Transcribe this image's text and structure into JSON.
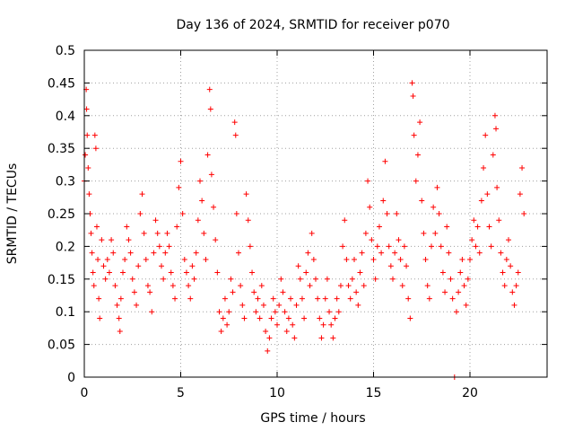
{
  "chart_data": {
    "type": "scatter",
    "title": "Day 136 of 2024, SRMTID for receiver p070",
    "xlabel": "GPS time / hours",
    "ylabel": "SRMTID / TECUs",
    "xlim": [
      0,
      24
    ],
    "ylim": [
      0,
      0.5
    ],
    "xticks": [
      0,
      5,
      10,
      15,
      20
    ],
    "xtick_labels": [
      "0",
      "5",
      "10",
      "15",
      "20"
    ],
    "yticks": [
      0,
      0.05,
      0.1,
      0.15,
      0.2,
      0.25,
      0.3,
      0.35,
      0.4,
      0.45,
      0.5
    ],
    "ytick_labels": [
      "0",
      "0.05",
      "0.1",
      "0.15",
      "0.2",
      "0.25",
      "0.3",
      "0.35",
      "0.4",
      "0.45",
      "0.5"
    ],
    "grid": true,
    "marker": "+",
    "color": "#ff0000",
    "series": [
      {
        "name": "SRMTID",
        "points": [
          [
            0.0,
            0.3
          ],
          [
            0.05,
            0.34
          ],
          [
            0.1,
            0.44
          ],
          [
            0.12,
            0.41
          ],
          [
            0.15,
            0.37
          ],
          [
            0.2,
            0.32
          ],
          [
            0.25,
            0.28
          ],
          [
            0.3,
            0.25
          ],
          [
            0.35,
            0.22
          ],
          [
            0.4,
            0.19
          ],
          [
            0.45,
            0.16
          ],
          [
            0.5,
            0.14
          ],
          [
            0.55,
            0.37
          ],
          [
            0.6,
            0.35
          ],
          [
            0.65,
            0.23
          ],
          [
            0.7,
            0.18
          ],
          [
            0.75,
            0.12
          ],
          [
            0.8,
            0.09
          ],
          [
            0.9,
            0.21
          ],
          [
            1.0,
            0.17
          ],
          [
            1.1,
            0.15
          ],
          [
            1.2,
            0.18
          ],
          [
            1.3,
            0.16
          ],
          [
            1.4,
            0.21
          ],
          [
            1.5,
            0.19
          ],
          [
            1.6,
            0.14
          ],
          [
            1.7,
            0.11
          ],
          [
            1.8,
            0.09
          ],
          [
            1.85,
            0.07
          ],
          [
            1.9,
            0.12
          ],
          [
            2.0,
            0.16
          ],
          [
            2.1,
            0.18
          ],
          [
            2.2,
            0.23
          ],
          [
            2.3,
            0.21
          ],
          [
            2.4,
            0.19
          ],
          [
            2.5,
            0.15
          ],
          [
            2.6,
            0.13
          ],
          [
            2.7,
            0.11
          ],
          [
            2.8,
            0.17
          ],
          [
            2.9,
            0.25
          ],
          [
            3.0,
            0.28
          ],
          [
            3.1,
            0.22
          ],
          [
            3.2,
            0.18
          ],
          [
            3.3,
            0.14
          ],
          [
            3.4,
            0.13
          ],
          [
            3.5,
            0.1
          ],
          [
            3.6,
            0.19
          ],
          [
            3.7,
            0.24
          ],
          [
            3.8,
            0.22
          ],
          [
            3.9,
            0.2
          ],
          [
            4.0,
            0.17
          ],
          [
            4.1,
            0.15
          ],
          [
            4.2,
            0.19
          ],
          [
            4.3,
            0.22
          ],
          [
            4.4,
            0.2
          ],
          [
            4.5,
            0.16
          ],
          [
            4.6,
            0.14
          ],
          [
            4.7,
            0.12
          ],
          [
            4.8,
            0.23
          ],
          [
            4.9,
            0.29
          ],
          [
            5.0,
            0.33
          ],
          [
            5.1,
            0.25
          ],
          [
            5.2,
            0.18
          ],
          [
            5.3,
            0.16
          ],
          [
            5.4,
            0.14
          ],
          [
            5.5,
            0.12
          ],
          [
            5.6,
            0.17
          ],
          [
            5.7,
            0.15
          ],
          [
            5.8,
            0.19
          ],
          [
            5.9,
            0.24
          ],
          [
            6.0,
            0.3
          ],
          [
            6.1,
            0.27
          ],
          [
            6.2,
            0.22
          ],
          [
            6.3,
            0.18
          ],
          [
            6.4,
            0.34
          ],
          [
            6.5,
            0.44
          ],
          [
            6.55,
            0.41
          ],
          [
            6.6,
            0.31
          ],
          [
            6.7,
            0.26
          ],
          [
            6.8,
            0.21
          ],
          [
            6.9,
            0.16
          ],
          [
            7.0,
            0.1
          ],
          [
            7.1,
            0.07
          ],
          [
            7.2,
            0.09
          ],
          [
            7.3,
            0.12
          ],
          [
            7.4,
            0.08
          ],
          [
            7.5,
            0.1
          ],
          [
            7.6,
            0.15
          ],
          [
            7.7,
            0.13
          ],
          [
            7.8,
            0.39
          ],
          [
            7.85,
            0.37
          ],
          [
            7.9,
            0.25
          ],
          [
            8.0,
            0.19
          ],
          [
            8.1,
            0.14
          ],
          [
            8.2,
            0.11
          ],
          [
            8.3,
            0.09
          ],
          [
            8.4,
            0.28
          ],
          [
            8.5,
            0.24
          ],
          [
            8.6,
            0.2
          ],
          [
            8.7,
            0.16
          ],
          [
            8.8,
            0.13
          ],
          [
            8.9,
            0.1
          ],
          [
            9.0,
            0.12
          ],
          [
            9.1,
            0.09
          ],
          [
            9.2,
            0.14
          ],
          [
            9.3,
            0.11
          ],
          [
            9.4,
            0.07
          ],
          [
            9.5,
            0.04
          ],
          [
            9.6,
            0.06
          ],
          [
            9.7,
            0.09
          ],
          [
            9.8,
            0.12
          ],
          [
            9.9,
            0.1
          ],
          [
            10.0,
            0.08
          ],
          [
            10.1,
            0.11
          ],
          [
            10.2,
            0.15
          ],
          [
            10.3,
            0.13
          ],
          [
            10.4,
            0.1
          ],
          [
            10.5,
            0.07
          ],
          [
            10.6,
            0.09
          ],
          [
            10.7,
            0.12
          ],
          [
            10.8,
            0.08
          ],
          [
            10.9,
            0.06
          ],
          [
            11.0,
            0.11
          ],
          [
            11.1,
            0.17
          ],
          [
            11.2,
            0.15
          ],
          [
            11.3,
            0.12
          ],
          [
            11.4,
            0.09
          ],
          [
            11.5,
            0.16
          ],
          [
            11.6,
            0.19
          ],
          [
            11.7,
            0.14
          ],
          [
            11.8,
            0.22
          ],
          [
            11.9,
            0.18
          ],
          [
            12.0,
            0.15
          ],
          [
            12.1,
            0.12
          ],
          [
            12.2,
            0.09
          ],
          [
            12.3,
            0.06
          ],
          [
            12.4,
            0.08
          ],
          [
            12.5,
            0.12
          ],
          [
            12.6,
            0.15
          ],
          [
            12.7,
            0.1
          ],
          [
            12.8,
            0.08
          ],
          [
            12.9,
            0.06
          ],
          [
            13.0,
            0.09
          ],
          [
            13.1,
            0.12
          ],
          [
            13.2,
            0.1
          ],
          [
            13.3,
            0.14
          ],
          [
            13.4,
            0.2
          ],
          [
            13.5,
            0.24
          ],
          [
            13.6,
            0.18
          ],
          [
            13.7,
            0.14
          ],
          [
            13.8,
            0.12
          ],
          [
            13.9,
            0.15
          ],
          [
            14.0,
            0.18
          ],
          [
            14.1,
            0.13
          ],
          [
            14.2,
            0.11
          ],
          [
            14.3,
            0.16
          ],
          [
            14.4,
            0.19
          ],
          [
            14.5,
            0.14
          ],
          [
            14.6,
            0.22
          ],
          [
            14.7,
            0.3
          ],
          [
            14.8,
            0.26
          ],
          [
            14.9,
            0.21
          ],
          [
            15.0,
            0.18
          ],
          [
            15.1,
            0.15
          ],
          [
            15.2,
            0.2
          ],
          [
            15.3,
            0.23
          ],
          [
            15.4,
            0.19
          ],
          [
            15.5,
            0.27
          ],
          [
            15.6,
            0.33
          ],
          [
            15.7,
            0.25
          ],
          [
            15.8,
            0.2
          ],
          [
            15.9,
            0.17
          ],
          [
            16.0,
            0.15
          ],
          [
            16.1,
            0.19
          ],
          [
            16.2,
            0.25
          ],
          [
            16.3,
            0.21
          ],
          [
            16.4,
            0.18
          ],
          [
            16.5,
            0.14
          ],
          [
            16.6,
            0.2
          ],
          [
            16.7,
            0.17
          ],
          [
            16.8,
            0.12
          ],
          [
            16.9,
            0.09
          ],
          [
            17.0,
            0.45
          ],
          [
            17.05,
            0.43
          ],
          [
            17.1,
            0.37
          ],
          [
            17.2,
            0.3
          ],
          [
            17.3,
            0.34
          ],
          [
            17.4,
            0.39
          ],
          [
            17.5,
            0.27
          ],
          [
            17.6,
            0.22
          ],
          [
            17.7,
            0.18
          ],
          [
            17.8,
            0.14
          ],
          [
            17.9,
            0.12
          ],
          [
            18.0,
            0.2
          ],
          [
            18.1,
            0.26
          ],
          [
            18.2,
            0.22
          ],
          [
            18.3,
            0.29
          ],
          [
            18.4,
            0.25
          ],
          [
            18.5,
            0.2
          ],
          [
            18.6,
            0.16
          ],
          [
            18.7,
            0.13
          ],
          [
            18.8,
            0.23
          ],
          [
            18.9,
            0.19
          ],
          [
            19.0,
            0.15
          ],
          [
            19.1,
            0.12
          ],
          [
            19.2,
            0.0
          ],
          [
            19.3,
            0.1
          ],
          [
            19.4,
            0.13
          ],
          [
            19.5,
            0.16
          ],
          [
            19.6,
            0.18
          ],
          [
            19.7,
            0.14
          ],
          [
            19.8,
            0.11
          ],
          [
            19.9,
            0.15
          ],
          [
            20.0,
            0.18
          ],
          [
            20.1,
            0.21
          ],
          [
            20.2,
            0.24
          ],
          [
            20.3,
            0.2
          ],
          [
            20.4,
            0.23
          ],
          [
            20.5,
            0.19
          ],
          [
            20.6,
            0.27
          ],
          [
            20.7,
            0.32
          ],
          [
            20.8,
            0.37
          ],
          [
            20.9,
            0.28
          ],
          [
            21.0,
            0.23
          ],
          [
            21.1,
            0.2
          ],
          [
            21.2,
            0.34
          ],
          [
            21.3,
            0.4
          ],
          [
            21.35,
            0.38
          ],
          [
            21.4,
            0.29
          ],
          [
            21.5,
            0.24
          ],
          [
            21.6,
            0.19
          ],
          [
            21.7,
            0.16
          ],
          [
            21.8,
            0.14
          ],
          [
            21.9,
            0.18
          ],
          [
            22.0,
            0.21
          ],
          [
            22.1,
            0.17
          ],
          [
            22.2,
            0.13
          ],
          [
            22.3,
            0.11
          ],
          [
            22.4,
            0.14
          ],
          [
            22.5,
            0.16
          ],
          [
            22.6,
            0.28
          ],
          [
            22.7,
            0.32
          ],
          [
            22.8,
            0.25
          ]
        ]
      }
    ]
  }
}
